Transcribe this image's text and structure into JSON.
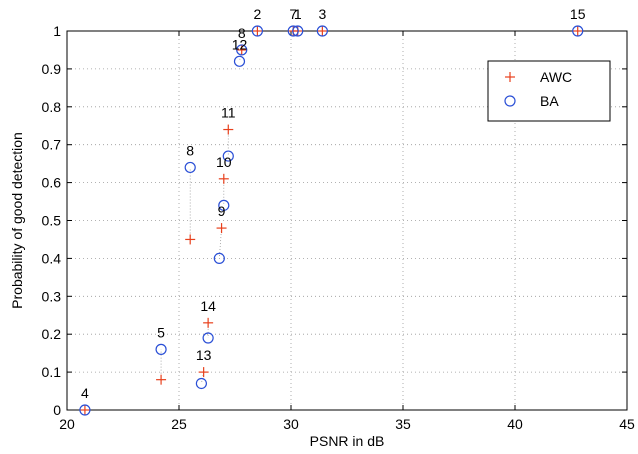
{
  "chart_data": {
    "type": "scatter",
    "title": "",
    "xlabel": "PSNR in dB",
    "ylabel": "Probability of good detection",
    "xlim": [
      20,
      45
    ],
    "ylim": [
      0,
      1
    ],
    "xticks": [
      "20",
      "25",
      "30",
      "35",
      "40",
      "45"
    ],
    "yticks": [
      "0",
      "0.1",
      "0.2",
      "0.3",
      "0.4",
      "0.5",
      "0.6",
      "0.7",
      "0.8",
      "0.9",
      "1"
    ],
    "grid": true,
    "legend_position": "top-right",
    "series": [
      {
        "name": "AWC",
        "marker": "plus",
        "color": "#e8401c",
        "points": [
          {
            "x": 20.8,
            "y": 0.0
          },
          {
            "x": 24.2,
            "y": 0.08
          },
          {
            "x": 25.5,
            "y": 0.45
          },
          {
            "x": 26.1,
            "y": 0.1
          },
          {
            "x": 26.3,
            "y": 0.23
          },
          {
            "x": 26.9,
            "y": 0.48
          },
          {
            "x": 27.0,
            "y": 0.61
          },
          {
            "x": 27.2,
            "y": 0.74
          },
          {
            "x": 27.8,
            "y": 0.95
          },
          {
            "x": 28.5,
            "y": 1.0
          },
          {
            "x": 30.1,
            "y": 1.0
          },
          {
            "x": 30.3,
            "y": 1.0
          },
          {
            "x": 31.4,
            "y": 1.0
          },
          {
            "x": 42.8,
            "y": 1.0
          }
        ]
      },
      {
        "name": "BA",
        "marker": "circle",
        "color": "#2a4fd6",
        "points": [
          {
            "x": 20.8,
            "y": 0.0
          },
          {
            "x": 24.2,
            "y": 0.16
          },
          {
            "x": 25.5,
            "y": 0.64
          },
          {
            "x": 26.0,
            "y": 0.07
          },
          {
            "x": 26.3,
            "y": 0.19
          },
          {
            "x": 26.8,
            "y": 0.4
          },
          {
            "x": 27.0,
            "y": 0.54
          },
          {
            "x": 27.2,
            "y": 0.67
          },
          {
            "x": 27.7,
            "y": 0.92
          },
          {
            "x": 27.8,
            "y": 0.95
          },
          {
            "x": 28.5,
            "y": 1.0
          },
          {
            "x": 30.1,
            "y": 1.0
          },
          {
            "x": 30.3,
            "y": 1.0
          },
          {
            "x": 31.4,
            "y": 1.0
          },
          {
            "x": 42.8,
            "y": 1.0
          }
        ]
      }
    ],
    "connectors": [
      {
        "from": [
          24.2,
          0.08
        ],
        "to": [
          24.2,
          0.16
        ]
      },
      {
        "from": [
          25.5,
          0.45
        ],
        "to": [
          25.5,
          0.64
        ]
      },
      {
        "from": [
          26.1,
          0.1
        ],
        "to": [
          26.0,
          0.07
        ]
      },
      {
        "from": [
          26.3,
          0.23
        ],
        "to": [
          26.3,
          0.19
        ]
      },
      {
        "from": [
          26.9,
          0.48
        ],
        "to": [
          26.8,
          0.4
        ]
      },
      {
        "from": [
          27.0,
          0.61
        ],
        "to": [
          27.0,
          0.54
        ]
      },
      {
        "from": [
          27.2,
          0.74
        ],
        "to": [
          27.2,
          0.67
        ]
      },
      {
        "from": [
          27.8,
          0.95
        ],
        "to": [
          27.7,
          0.92
        ]
      }
    ],
    "annotations": [
      {
        "text": "4",
        "x": 20.8,
        "y": 0.0
      },
      {
        "text": "5",
        "x": 24.2,
        "y": 0.16
      },
      {
        "text": "13",
        "x": 26.1,
        "y": 0.1
      },
      {
        "text": "14",
        "x": 26.3,
        "y": 0.23
      },
      {
        "text": "9",
        "x": 26.9,
        "y": 0.48
      },
      {
        "text": "8",
        "x": 25.5,
        "y": 0.64
      },
      {
        "text": "10",
        "x": 27.0,
        "y": 0.61
      },
      {
        "text": "11",
        "x": 27.2,
        "y": 0.74
      },
      {
        "text": "12",
        "x": 27.7,
        "y": 0.92
      },
      {
        "text": "8",
        "x": 27.8,
        "y": 0.95
      },
      {
        "text": "2",
        "x": 28.5,
        "y": 1.0
      },
      {
        "text": "7",
        "x": 30.1,
        "y": 1.0
      },
      {
        "text": "1",
        "x": 30.3,
        "y": 1.0
      },
      {
        "text": "3",
        "x": 31.4,
        "y": 1.0
      },
      {
        "text": "15",
        "x": 42.8,
        "y": 1.0
      }
    ]
  }
}
